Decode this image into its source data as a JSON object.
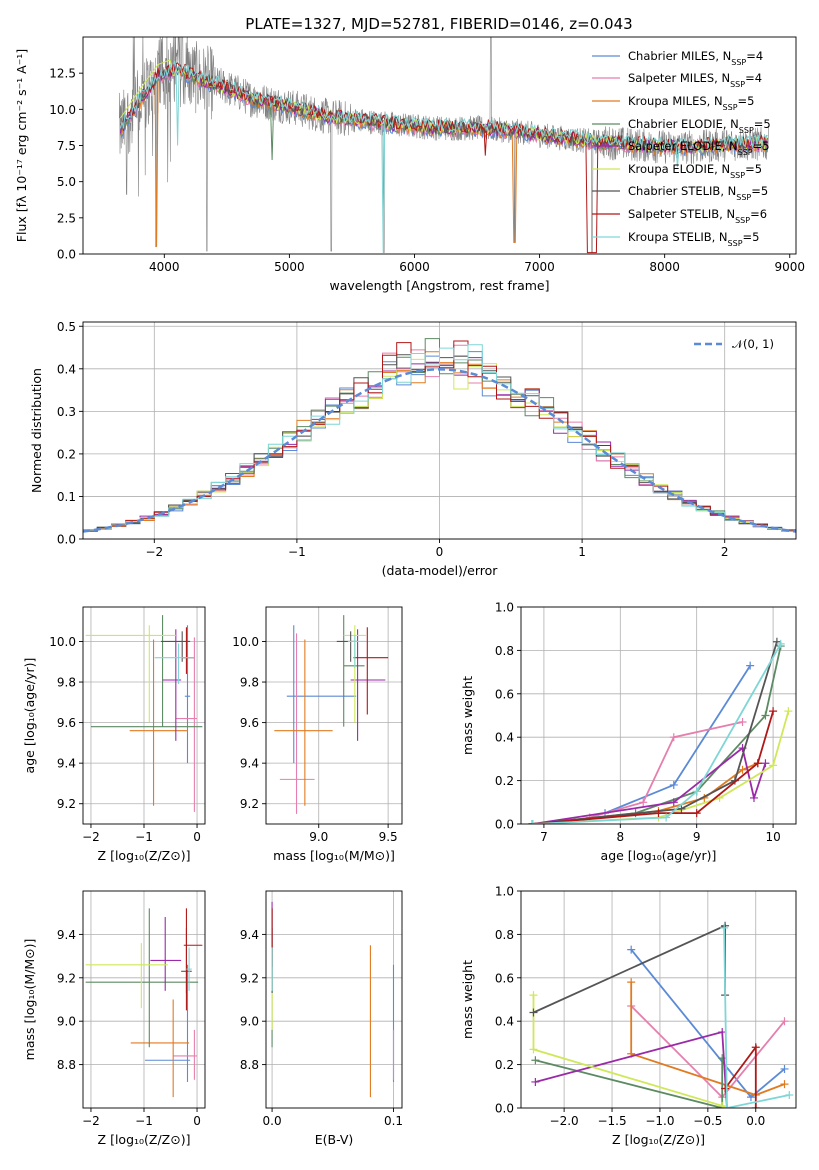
{
  "title": "PLATE=1327, MJD=52781, FIBERID=0146, z=0.043",
  "colors": {
    "Chabrier MILES": "#5b8ad6",
    "Salpeter MILES": "#e57fae",
    "Kroupa MILES": "#e07b22",
    "Chabrier ELODIE": "#5c8a63",
    "Salpeter ELODIE": "#9a2aa8",
    "Kroupa ELODIE": "#cfe85a",
    "Chabrier STELIB": "#555555",
    "Salpeter STELIB": "#b01818",
    "Kroupa STELIB": "#7fd6d6",
    "data": "#808080",
    "grid": "#b0b0b0"
  },
  "chart_data": [
    {
      "id": "spectrum",
      "type": "line",
      "title": "PLATE=1327, MJD=52781, FIBERID=0146, z=0.043",
      "xlabel": "wavelength [Angstrom, rest frame]",
      "ylabel": "Flux [fλ 10⁻¹⁷ erg cm⁻² s⁻¹ A⁻¹]",
      "xlim": [
        3350,
        9050
      ],
      "ylim": [
        0,
        15
      ],
      "xticks": [
        "4000",
        "5000",
        "6000",
        "7000",
        "8000",
        "9000"
      ],
      "yticks": [
        "0.0",
        "2.5",
        "5.0",
        "7.5",
        "10.0",
        "12.5"
      ],
      "grid": false,
      "legend_position": "upper-right",
      "legend": [
        {
          "label": "Chabrier MILES, N",
          "sub": "SSP",
          "suffix": "=4"
        },
        {
          "label": "Salpeter MILES, N",
          "sub": "SSP",
          "suffix": "=4"
        },
        {
          "label": "Kroupa MILES, N",
          "sub": "SSP",
          "suffix": "=5"
        },
        {
          "label": "Chabrier ELODIE, N",
          "sub": "SSP",
          "suffix": "=5"
        },
        {
          "label": "Salpeter ELODIE, N",
          "sub": "SSP",
          "suffix": "=5"
        },
        {
          "label": "Kroupa ELODIE, N",
          "sub": "SSP",
          "suffix": "=5"
        },
        {
          "label": "Chabrier STELIB, N",
          "sub": "SSP",
          "suffix": "=5"
        },
        {
          "label": "Salpeter STELIB, N",
          "sub": "SSP",
          "suffix": "=6"
        },
        {
          "label": "Kroupa STELIB, N",
          "sub": "SSP",
          "suffix": "=5"
        }
      ],
      "continuum": [
        [
          3650,
          8.6
        ],
        [
          3800,
          10.5
        ],
        [
          3950,
          12.3
        ],
        [
          4100,
          12.8
        ],
        [
          4300,
          12.0
        ],
        [
          4500,
          11.5
        ],
        [
          4700,
          10.7
        ],
        [
          5000,
          10.2
        ],
        [
          5300,
          9.5
        ],
        [
          5600,
          9.2
        ],
        [
          5900,
          8.9
        ],
        [
          6200,
          8.7
        ],
        [
          6500,
          8.7
        ],
        [
          6800,
          8.5
        ],
        [
          7100,
          8.1
        ],
        [
          7400,
          7.8
        ],
        [
          7700,
          7.6
        ],
        [
          8000,
          7.4
        ],
        [
          8300,
          7.4
        ],
        [
          8500,
          7.6
        ],
        [
          8800,
          7.6
        ]
      ],
      "dips": [
        [
          3934,
          0.5
        ],
        [
          4101,
          7.5
        ],
        [
          4340,
          0.2
        ],
        [
          4861,
          6.5
        ],
        [
          5335,
          0.2
        ],
        [
          5755,
          0.1
        ],
        [
          6563,
          6.8
        ],
        [
          6800,
          0.8
        ],
        [
          7420,
          0.1
        ],
        [
          8100,
          6.0
        ]
      ]
    },
    {
      "id": "residuals",
      "type": "step",
      "xlabel": "(data-model)/error",
      "ylabel": "Normed distribution",
      "xlim": [
        -2.5,
        2.5
      ],
      "ylim": [
        0,
        0.51
      ],
      "xticks": [
        "-2",
        "-1",
        "0",
        "1",
        "2"
      ],
      "yticks": [
        "0.0",
        "0.1",
        "0.2",
        "0.3",
        "0.4",
        "0.5"
      ],
      "grid": true,
      "legend_position": "upper-right",
      "legend": [
        {
          "label": "𝒩(0, 1)"
        }
      ],
      "bin_width": 0.1,
      "normal": {
        "mu": 0,
        "sigma": 1
      }
    },
    {
      "id": "age_vs_Z",
      "type": "errorbar",
      "xlabel": "Z [log₁₀(Z/Z⊙)]",
      "ylabel": "age  [log₁₀(age/yr)]",
      "xlim": [
        -2.15,
        0.15
      ],
      "ylim": [
        9.1,
        10.17
      ],
      "xticks": [
        "-2",
        "-1",
        "0"
      ],
      "yticks": [
        "9.2",
        "9.4",
        "9.6",
        "9.8",
        "10.0"
      ],
      "grid": true,
      "points": [
        {
          "model": "Chabrier MILES",
          "x": -0.18,
          "y": 9.73,
          "xerr": [
            0.05,
            0.05
          ],
          "yerr": [
            0.33,
            0.35
          ]
        },
        {
          "model": "Salpeter MILES",
          "x": -0.05,
          "y": 9.62,
          "xerr": [
            0.35,
            0.05
          ],
          "yerr": [
            0.46,
            0.4
          ]
        },
        {
          "model": "Kroupa MILES",
          "x": -0.82,
          "y": 9.56,
          "xerr": [
            0.45,
            0.65
          ],
          "yerr": [
            0.37,
            0.45
          ]
        },
        {
          "model": "Chabrier ELODIE",
          "x": -0.65,
          "y": 9.58,
          "xerr": [
            1.35,
            0.75
          ],
          "yerr": [
            0.0,
            0.55
          ]
        },
        {
          "model": "Salpeter ELODIE",
          "x": -0.4,
          "y": 9.81,
          "xerr": [
            0.25,
            0.1
          ],
          "yerr": [
            0.3,
            0.25
          ]
        },
        {
          "model": "Kroupa ELODIE",
          "x": -0.9,
          "y": 10.03,
          "xerr": [
            1.2,
            0.5
          ],
          "yerr": [
            0.43,
            0.05
          ]
        },
        {
          "model": "Chabrier STELIB",
          "x": -0.28,
          "y": 10.0,
          "xerr": [
            0.4,
            0.15
          ],
          "yerr": [
            0.1,
            0.05
          ]
        },
        {
          "model": "Salpeter STELIB",
          "x": -0.2,
          "y": 9.92,
          "xerr": [
            0.08,
            0.15
          ],
          "yerr": [
            0.08,
            0.15
          ]
        },
        {
          "model": "Kroupa STELIB",
          "x": -0.35,
          "y": 9.92,
          "xerr": [
            0.45,
            0.3
          ],
          "yerr": [
            0.13,
            0.07
          ]
        }
      ]
    },
    {
      "id": "age_vs_mass",
      "type": "errorbar",
      "xlabel": "mass [log₁₀(M/M⊙)]",
      "xlim": [
        8.62,
        9.6
      ],
      "ylim": [
        9.1,
        10.17
      ],
      "xticks": [
        "9.0",
        "9.5"
      ],
      "yticks": [
        "9.2",
        "9.4",
        "9.6",
        "9.8",
        "10.0"
      ],
      "grid": true,
      "points": [
        {
          "model": "Chabrier MILES",
          "x": 8.82,
          "y": 9.73,
          "xerr": [
            0.05,
            0.45
          ],
          "yerr": [
            0.33,
            0.35
          ]
        },
        {
          "model": "Salpeter MILES",
          "x": 8.84,
          "y": 9.32,
          "xerr": [
            0.12,
            0.13
          ],
          "yerr": [
            0.17,
            0.72
          ]
        },
        {
          "model": "Kroupa MILES",
          "x": 8.9,
          "y": 9.56,
          "xerr": [
            0.22,
            0.2
          ],
          "yerr": [
            0.37,
            0.45
          ]
        },
        {
          "model": "Chabrier ELODIE",
          "x": 9.18,
          "y": 9.88,
          "xerr": [
            0.0,
            0.15
          ],
          "yerr": [
            0.3,
            0.25
          ]
        },
        {
          "model": "Salpeter ELODIE",
          "x": 9.28,
          "y": 9.81,
          "xerr": [
            0.05,
            0.2
          ],
          "yerr": [
            0.3,
            0.25
          ]
        },
        {
          "model": "Kroupa ELODIE",
          "x": 9.26,
          "y": 10.03,
          "xerr": [
            0.08,
            0.08
          ],
          "yerr": [
            0.43,
            0.05
          ]
        },
        {
          "model": "Chabrier STELIB",
          "x": 9.23,
          "y": 10.0,
          "xerr": [
            0.1,
            0.05
          ],
          "yerr": [
            0.1,
            0.05
          ]
        },
        {
          "model": "Salpeter STELIB",
          "x": 9.35,
          "y": 9.92,
          "xerr": [
            0.1,
            0.15
          ],
          "yerr": [
            0.28,
            0.15
          ]
        },
        {
          "model": "Kroupa STELIB",
          "x": 9.26,
          "y": 10.0,
          "xerr": [
            0.05,
            0.08
          ],
          "yerr": [
            0.13,
            0.03
          ]
        }
      ]
    },
    {
      "id": "massweight_vs_age",
      "type": "line",
      "xlabel": "age  [log₁₀(age/yr)]",
      "ylabel": "mass weight",
      "xlim": [
        6.7,
        10.3
      ],
      "ylim": [
        0,
        1
      ],
      "xticks": [
        "7",
        "8",
        "9",
        "10"
      ],
      "yticks": [
        "0.0",
        "0.2",
        "0.4",
        "0.6",
        "0.8",
        "1.0"
      ],
      "grid": true,
      "series": [
        {
          "model": "Chabrier MILES",
          "x": [
            7.8,
            8.7,
            9.7
          ],
          "y": [
            0.05,
            0.18,
            0.73
          ]
        },
        {
          "model": "Salpeter MILES",
          "x": [
            7.6,
            8.3,
            8.7,
            9.6
          ],
          "y": [
            0.03,
            0.1,
            0.4,
            0.47
          ]
        },
        {
          "model": "Kroupa MILES",
          "x": [
            6.85,
            8.5,
            9.1,
            9.6,
            9.8
          ],
          "y": [
            0.0,
            0.06,
            0.12,
            0.25,
            0.28
          ]
        },
        {
          "model": "Chabrier ELODIE",
          "x": [
            6.85,
            8.2,
            9.0,
            9.9,
            10.1
          ],
          "y": [
            0.0,
            0.05,
            0.15,
            0.5,
            0.82
          ]
        },
        {
          "model": "Salpeter ELODIE",
          "x": [
            6.85,
            8.7,
            9.6,
            9.75,
            9.9
          ],
          "y": [
            0.0,
            0.1,
            0.35,
            0.12,
            0.28
          ]
        },
        {
          "model": "Kroupa ELODIE",
          "x": [
            6.85,
            8.5,
            9.3,
            10.0,
            10.2
          ],
          "y": [
            0.0,
            0.03,
            0.12,
            0.27,
            0.52
          ]
        },
        {
          "model": "Chabrier STELIB",
          "x": [
            6.85,
            8.8,
            9.5,
            10.05
          ],
          "y": [
            0.0,
            0.07,
            0.2,
            0.84
          ]
        },
        {
          "model": "Salpeter STELIB",
          "x": [
            6.85,
            8.5,
            9.0,
            9.8,
            10.0
          ],
          "y": [
            0.0,
            0.05,
            0.05,
            0.28,
            0.52
          ]
        },
        {
          "model": "Kroupa STELIB",
          "x": [
            6.85,
            8.6,
            9.0,
            10.1
          ],
          "y": [
            0.0,
            0.03,
            0.15,
            0.83
          ]
        }
      ]
    },
    {
      "id": "mass_vs_Z",
      "type": "errorbar",
      "xlabel": "Z [log₁₀(Z/Z⊙)]",
      "ylabel": "mass [log₁₀(M/M⊙)]",
      "xlim": [
        -2.15,
        0.15
      ],
      "ylim": [
        8.6,
        9.6
      ],
      "xticks": [
        "-2",
        "-1",
        "0"
      ],
      "yticks": [
        "8.8",
        "9.0",
        "9.2",
        "9.4"
      ],
      "grid": true,
      "points": [
        {
          "model": "Chabrier MILES",
          "x": -0.18,
          "y": 8.82,
          "xerr": [
            0.8,
            0.05
          ],
          "yerr": [
            0.1,
            0.44
          ]
        },
        {
          "model": "Salpeter MILES",
          "x": -0.05,
          "y": 8.84,
          "xerr": [
            0.4,
            0.05
          ],
          "yerr": [
            0.11,
            0.12
          ]
        },
        {
          "model": "Kroupa MILES",
          "x": -0.45,
          "y": 8.9,
          "xerr": [
            0.8,
            0.3
          ],
          "yerr": [
            0.25,
            0.2
          ]
        },
        {
          "model": "Chabrier ELODIE",
          "x": -0.9,
          "y": 9.18,
          "xerr": [
            1.2,
            0.92
          ],
          "yerr": [
            0.3,
            0.34
          ]
        },
        {
          "model": "Salpeter ELODIE",
          "x": -0.6,
          "y": 9.28,
          "xerr": [
            0.28,
            0.3
          ],
          "yerr": [
            0.14,
            0.2
          ]
        },
        {
          "model": "Kroupa ELODIE",
          "x": -1.05,
          "y": 9.26,
          "xerr": [
            1.05,
            0.5
          ],
          "yerr": [
            0.2,
            0.1
          ]
        },
        {
          "model": "Chabrier STELIB",
          "x": -0.2,
          "y": 9.23,
          "xerr": [
            0.1,
            0.1
          ],
          "yerr": [
            0.1,
            0.2
          ]
        },
        {
          "model": "Salpeter STELIB",
          "x": -0.2,
          "y": 9.35,
          "xerr": [
            0.05,
            0.3
          ],
          "yerr": [
            0.3,
            0.17
          ]
        },
        {
          "model": "Kroupa STELIB",
          "x": -0.15,
          "y": 9.24,
          "xerr": [
            0.05,
            0.05
          ],
          "yerr": [
            0.1,
            0.1
          ]
        }
      ]
    },
    {
      "id": "mass_vs_ebv",
      "type": "errorbar",
      "xlabel": "E(B-V)",
      "xlim": [
        -0.005,
        0.107
      ],
      "ylim": [
        8.6,
        9.6
      ],
      "xticks": [
        "0.0",
        "0.1"
      ],
      "yticks": [
        "8.8",
        "9.0",
        "9.2",
        "9.4"
      ],
      "grid": true,
      "points": [
        {
          "model": "Chabrier MILES",
          "x": 0.1,
          "y": 8.82,
          "xerr": [
            0,
            0
          ],
          "yerr": [
            0.1,
            0.44
          ]
        },
        {
          "model": "Salpeter MILES",
          "x": 0.1,
          "y": 8.84,
          "xerr": [
            0,
            0
          ],
          "yerr": [
            0.11,
            0.12
          ]
        },
        {
          "model": "Kroupa MILES",
          "x": 0.081,
          "y": 8.9,
          "xerr": [
            0,
            0
          ],
          "yerr": [
            0.25,
            0.45
          ]
        },
        {
          "model": "Chabrier ELODIE",
          "x": 0.0,
          "y": 9.18,
          "xerr": [
            0,
            0
          ],
          "yerr": [
            0.3,
            0.34
          ]
        },
        {
          "model": "Salpeter ELODIE",
          "x": 0.0,
          "y": 9.28,
          "xerr": [
            0,
            0
          ],
          "yerr": [
            0.14,
            0.27
          ]
        },
        {
          "model": "Kroupa ELODIE",
          "x": 0.0,
          "y": 9.26,
          "xerr": [
            0,
            0
          ],
          "yerr": [
            0.3,
            0.1
          ]
        },
        {
          "model": "Chabrier STELIB",
          "x": 0.0,
          "y": 9.23,
          "xerr": [
            0,
            0
          ],
          "yerr": [
            0.1,
            0.2
          ]
        },
        {
          "model": "Salpeter STELIB",
          "x": 0.0,
          "y": 9.35,
          "xerr": [
            0,
            0
          ],
          "yerr": [
            0.1,
            0.17
          ]
        },
        {
          "model": "Kroupa STELIB",
          "x": 0.0,
          "y": 9.24,
          "xerr": [
            0,
            0
          ],
          "yerr": [
            0.1,
            0.1
          ]
        }
      ]
    },
    {
      "id": "massweight_vs_Z",
      "type": "line",
      "xlabel": "Z [log₁₀(Z/Z⊙)]",
      "ylabel": "mass weight",
      "xlim": [
        -2.45,
        0.42
      ],
      "ylim": [
        0,
        1
      ],
      "xticks": [
        "-2.0",
        "-1.5",
        "-1.0",
        "-0.5",
        "0.0"
      ],
      "yticks": [
        "0.0",
        "0.2",
        "0.4",
        "0.6",
        "0.8",
        "1.0"
      ],
      "grid": true,
      "series": [
        {
          "model": "Chabrier MILES",
          "x": [
            -1.3,
            -0.05,
            0.3
          ],
          "y": [
            0.73,
            0.05,
            0.18
          ]
        },
        {
          "model": "Salpeter MILES",
          "x": [
            -1.3,
            -0.35,
            0.3
          ],
          "y": [
            0.47,
            0.05,
            0.4
          ]
        },
        {
          "model": "Kroupa MILES",
          "x": [
            -1.3,
            -1.3,
            0.0,
            0.3
          ],
          "y": [
            0.58,
            0.25,
            0.06,
            0.11
          ]
        },
        {
          "model": "Chabrier ELODIE",
          "x": [
            -2.3,
            -0.35,
            -0.35
          ],
          "y": [
            0.22,
            0.0,
            0.23
          ]
        },
        {
          "model": "Salpeter ELODIE",
          "x": [
            -2.3,
            -0.35,
            -0.3
          ],
          "y": [
            0.12,
            0.35,
            0.0
          ]
        },
        {
          "model": "Kroupa ELODIE",
          "x": [
            -2.32,
            -2.32,
            -0.35,
            -0.3
          ],
          "y": [
            0.52,
            0.27,
            0.01,
            0.0
          ]
        },
        {
          "model": "Chabrier STELIB",
          "x": [
            -2.32,
            -0.32,
            -0.32
          ],
          "y": [
            0.44,
            0.84,
            0.52
          ]
        },
        {
          "model": "Salpeter STELIB",
          "x": [
            -0.32,
            0.0,
            0.0
          ],
          "y": [
            0.09,
            0.28,
            0.0
          ]
        },
        {
          "model": "Kroupa STELIB",
          "x": [
            -0.33,
            -0.3,
            0.35
          ],
          "y": [
            0.83,
            0.0,
            0.06
          ]
        }
      ]
    }
  ]
}
